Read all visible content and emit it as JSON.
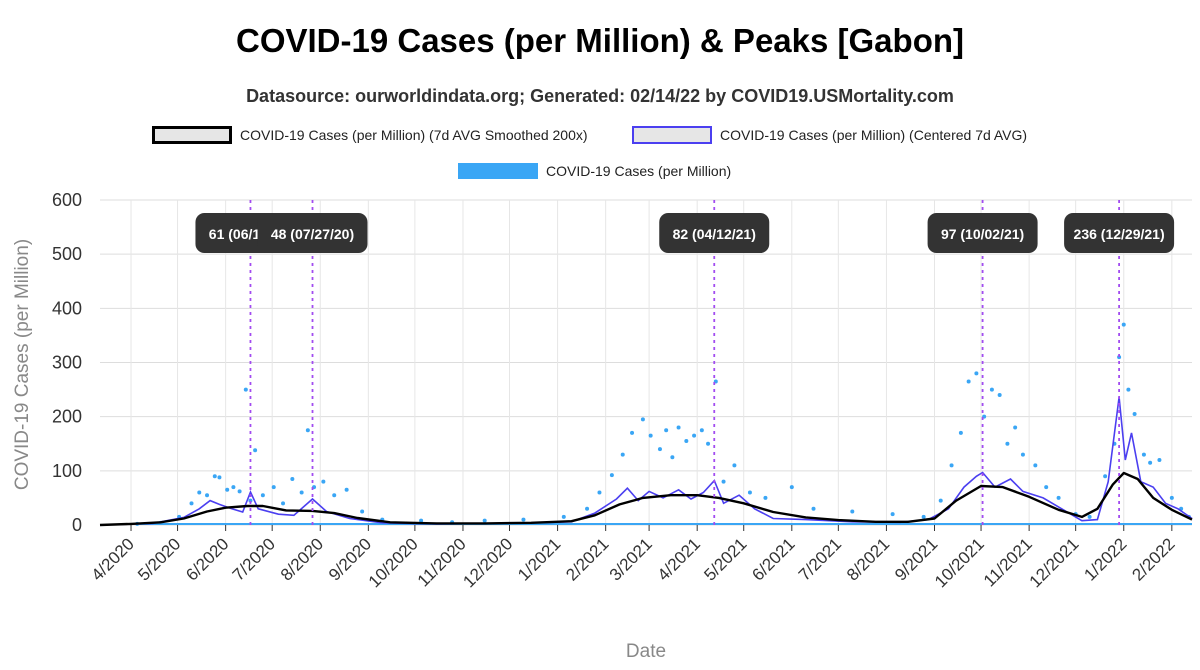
{
  "title": "COVID-19 Cases (per Million) & Peaks [Gabon]",
  "subtitle": "Datasource: ourworldindata.org; Generated: 02/14/22 by COVID19.USMortality.com",
  "legend": {
    "smoothed": "COVID-19 Cases (per Million) (7d AVG Smoothed 200x)",
    "centered": "COVID-19 Cases (per Million) (Centered 7d AVG)",
    "raw": "COVID-19 Cases (per Million)"
  },
  "colors": {
    "smoothed": "#000000",
    "centered": "#4b3ff0",
    "raw": "#3aa6f5",
    "peak_line": "#a24cf0",
    "peak_label_bg": "#333333"
  },
  "chart_data": {
    "type": "line",
    "xlabel": "Date",
    "ylabel": "COVID-19 Cases (per Million)",
    "ylim": [
      0,
      600
    ],
    "xlim": [
      "2020-03-12",
      "2022-02-14"
    ],
    "yticks": [
      "0",
      "100",
      "200",
      "300",
      "400",
      "500",
      "600"
    ],
    "xticks": [
      {
        "date": "2020-04-01",
        "label": "4/2020"
      },
      {
        "date": "2020-05-01",
        "label": "5/2020"
      },
      {
        "date": "2020-06-01",
        "label": "6/2020"
      },
      {
        "date": "2020-07-01",
        "label": "7/2020"
      },
      {
        "date": "2020-08-01",
        "label": "8/2020"
      },
      {
        "date": "2020-09-01",
        "label": "9/2020"
      },
      {
        "date": "2020-10-01",
        "label": "10/2020"
      },
      {
        "date": "2020-11-01",
        "label": "11/2020"
      },
      {
        "date": "2020-12-01",
        "label": "12/2020"
      },
      {
        "date": "2021-01-01",
        "label": "1/2021"
      },
      {
        "date": "2021-02-01",
        "label": "2/2021"
      },
      {
        "date": "2021-03-01",
        "label": "3/2021"
      },
      {
        "date": "2021-04-01",
        "label": "4/2021"
      },
      {
        "date": "2021-05-01",
        "label": "5/2021"
      },
      {
        "date": "2021-06-01",
        "label": "6/2021"
      },
      {
        "date": "2021-07-01",
        "label": "7/2021"
      },
      {
        "date": "2021-08-01",
        "label": "8/2021"
      },
      {
        "date": "2021-09-01",
        "label": "9/2021"
      },
      {
        "date": "2021-10-01",
        "label": "10/2021"
      },
      {
        "date": "2021-11-01",
        "label": "11/2021"
      },
      {
        "date": "2021-12-01",
        "label": "12/2021"
      },
      {
        "date": "2022-01-01",
        "label": "1/2022"
      },
      {
        "date": "2022-02-01",
        "label": "2/2022"
      }
    ],
    "grid": true,
    "legend_position": "top",
    "peaks": [
      {
        "date": "2020-06-17",
        "label": "61 (06/17/20)",
        "value": 61
      },
      {
        "date": "2020-07-27",
        "label": "48 (07/27/20)",
        "value": 48
      },
      {
        "date": "2021-04-12",
        "label": "82 (04/12/21)",
        "value": 82
      },
      {
        "date": "2021-10-02",
        "label": "97 (10/02/21)",
        "value": 97
      },
      {
        "date": "2021-12-29",
        "label": "236 (12/29/21)",
        "value": 236
      }
    ],
    "series": [
      {
        "name": "COVID-19 Cases (per Million) (7d AVG Smoothed 200x)",
        "points": [
          [
            "2020-03-12",
            0
          ],
          [
            "2020-04-01",
            2
          ],
          [
            "2020-04-20",
            5
          ],
          [
            "2020-05-05",
            12
          ],
          [
            "2020-05-20",
            25
          ],
          [
            "2020-06-01",
            32
          ],
          [
            "2020-06-15",
            35
          ],
          [
            "2020-06-25",
            35
          ],
          [
            "2020-07-10",
            27
          ],
          [
            "2020-07-27",
            26
          ],
          [
            "2020-08-10",
            22
          ],
          [
            "2020-08-25",
            13
          ],
          [
            "2020-09-15",
            5
          ],
          [
            "2020-10-15",
            3
          ],
          [
            "2020-11-15",
            3
          ],
          [
            "2020-12-15",
            4
          ],
          [
            "2021-01-10",
            7
          ],
          [
            "2021-01-25",
            18
          ],
          [
            "2021-02-10",
            38
          ],
          [
            "2021-02-25",
            50
          ],
          [
            "2021-03-15",
            55
          ],
          [
            "2021-04-01",
            55
          ],
          [
            "2021-04-15",
            50
          ],
          [
            "2021-05-01",
            40
          ],
          [
            "2021-05-20",
            24
          ],
          [
            "2021-06-10",
            14
          ],
          [
            "2021-07-01",
            9
          ],
          [
            "2021-07-25",
            6
          ],
          [
            "2021-08-15",
            6
          ],
          [
            "2021-09-01",
            12
          ],
          [
            "2021-09-15",
            45
          ],
          [
            "2021-10-01",
            72
          ],
          [
            "2021-10-15",
            70
          ],
          [
            "2021-11-01",
            52
          ],
          [
            "2021-11-20",
            28
          ],
          [
            "2021-12-05",
            15
          ],
          [
            "2021-12-15",
            30
          ],
          [
            "2021-12-25",
            75
          ],
          [
            "2022-01-01",
            96
          ],
          [
            "2022-01-10",
            85
          ],
          [
            "2022-01-20",
            50
          ],
          [
            "2022-02-01",
            28
          ],
          [
            "2022-02-14",
            10
          ]
        ]
      },
      {
        "name": "COVID-19 Cases (per Million) (Centered 7d AVG)",
        "points": [
          [
            "2020-03-12",
            0
          ],
          [
            "2020-04-15",
            3
          ],
          [
            "2020-05-05",
            14
          ],
          [
            "2020-05-15",
            30
          ],
          [
            "2020-05-22",
            45
          ],
          [
            "2020-05-28",
            38
          ],
          [
            "2020-06-05",
            30
          ],
          [
            "2020-06-12",
            24
          ],
          [
            "2020-06-17",
            61
          ],
          [
            "2020-06-22",
            30
          ],
          [
            "2020-07-05",
            20
          ],
          [
            "2020-07-15",
            18
          ],
          [
            "2020-07-27",
            48
          ],
          [
            "2020-08-05",
            25
          ],
          [
            "2020-08-20",
            12
          ],
          [
            "2020-09-10",
            4
          ],
          [
            "2020-10-15",
            2
          ],
          [
            "2020-11-15",
            3
          ],
          [
            "2020-12-15",
            4
          ],
          [
            "2021-01-10",
            6
          ],
          [
            "2021-01-25",
            22
          ],
          [
            "2021-02-08",
            48
          ],
          [
            "2021-02-15",
            68
          ],
          [
            "2021-02-22",
            45
          ],
          [
            "2021-03-01",
            62
          ],
          [
            "2021-03-10",
            50
          ],
          [
            "2021-03-20",
            65
          ],
          [
            "2021-03-28",
            48
          ],
          [
            "2021-04-05",
            60
          ],
          [
            "2021-04-12",
            82
          ],
          [
            "2021-04-18",
            40
          ],
          [
            "2021-04-28",
            55
          ],
          [
            "2021-05-08",
            30
          ],
          [
            "2021-05-20",
            12
          ],
          [
            "2021-06-10",
            10
          ],
          [
            "2021-07-10",
            6
          ],
          [
            "2021-08-10",
            5
          ],
          [
            "2021-08-28",
            10
          ],
          [
            "2021-09-10",
            30
          ],
          [
            "2021-09-20",
            70
          ],
          [
            "2021-09-28",
            90
          ],
          [
            "2021-10-02",
            97
          ],
          [
            "2021-10-10",
            70
          ],
          [
            "2021-10-20",
            85
          ],
          [
            "2021-10-28",
            62
          ],
          [
            "2021-11-10",
            50
          ],
          [
            "2021-11-22",
            30
          ],
          [
            "2021-12-05",
            8
          ],
          [
            "2021-12-15",
            10
          ],
          [
            "2021-12-22",
            80
          ],
          [
            "2021-12-29",
            236
          ],
          [
            "2022-01-02",
            120
          ],
          [
            "2022-01-06",
            170
          ],
          [
            "2022-01-12",
            80
          ],
          [
            "2022-01-20",
            70
          ],
          [
            "2022-01-28",
            40
          ],
          [
            "2022-02-05",
            30
          ],
          [
            "2022-02-14",
            12
          ]
        ]
      },
      {
        "name": "COVID-19 Cases (per Million)",
        "points": [
          [
            "2020-04-05",
            2
          ],
          [
            "2020-04-20",
            4
          ],
          [
            "2020-05-02",
            15
          ],
          [
            "2020-05-10",
            40
          ],
          [
            "2020-05-15",
            60
          ],
          [
            "2020-05-20",
            55
          ],
          [
            "2020-05-25",
            90
          ],
          [
            "2020-05-28",
            88
          ],
          [
            "2020-06-02",
            65
          ],
          [
            "2020-06-06",
            70
          ],
          [
            "2020-06-10",
            62
          ],
          [
            "2020-06-14",
            250
          ],
          [
            "2020-06-17",
            45
          ],
          [
            "2020-06-20",
            138
          ],
          [
            "2020-06-25",
            55
          ],
          [
            "2020-07-02",
            70
          ],
          [
            "2020-07-08",
            40
          ],
          [
            "2020-07-14",
            85
          ],
          [
            "2020-07-20",
            60
          ],
          [
            "2020-07-24",
            175
          ],
          [
            "2020-07-28",
            70
          ],
          [
            "2020-08-03",
            80
          ],
          [
            "2020-08-10",
            55
          ],
          [
            "2020-08-18",
            65
          ],
          [
            "2020-08-28",
            25
          ],
          [
            "2020-09-10",
            10
          ],
          [
            "2020-10-05",
            8
          ],
          [
            "2020-10-25",
            5
          ],
          [
            "2020-11-15",
            8
          ],
          [
            "2020-12-10",
            10
          ],
          [
            "2021-01-05",
            15
          ],
          [
            "2021-01-20",
            30
          ],
          [
            "2021-01-28",
            60
          ],
          [
            "2021-02-05",
            92
          ],
          [
            "2021-02-12",
            130
          ],
          [
            "2021-02-18",
            170
          ],
          [
            "2021-02-25",
            195
          ],
          [
            "2021-03-02",
            165
          ],
          [
            "2021-03-08",
            140
          ],
          [
            "2021-03-12",
            175
          ],
          [
            "2021-03-16",
            125
          ],
          [
            "2021-03-20",
            180
          ],
          [
            "2021-03-25",
            155
          ],
          [
            "2021-03-30",
            165
          ],
          [
            "2021-04-04",
            175
          ],
          [
            "2021-04-08",
            150
          ],
          [
            "2021-04-13",
            265
          ],
          [
            "2021-04-18",
            80
          ],
          [
            "2021-04-25",
            110
          ],
          [
            "2021-05-05",
            60
          ],
          [
            "2021-05-15",
            50
          ],
          [
            "2021-06-01",
            70
          ],
          [
            "2021-06-15",
            30
          ],
          [
            "2021-07-10",
            25
          ],
          [
            "2021-08-05",
            20
          ],
          [
            "2021-08-25",
            15
          ],
          [
            "2021-09-05",
            45
          ],
          [
            "2021-09-12",
            110
          ],
          [
            "2021-09-18",
            170
          ],
          [
            "2021-09-23",
            265
          ],
          [
            "2021-09-28",
            280
          ],
          [
            "2021-10-03",
            200
          ],
          [
            "2021-10-08",
            250
          ],
          [
            "2021-10-13",
            240
          ],
          [
            "2021-10-18",
            150
          ],
          [
            "2021-10-23",
            180
          ],
          [
            "2021-10-28",
            130
          ],
          [
            "2021-11-05",
            110
          ],
          [
            "2021-11-12",
            70
          ],
          [
            "2021-11-20",
            50
          ],
          [
            "2021-12-01",
            20
          ],
          [
            "2021-12-10",
            15
          ],
          [
            "2021-12-20",
            90
          ],
          [
            "2021-12-26",
            150
          ],
          [
            "2021-12-29",
            310
          ],
          [
            "2022-01-01",
            370
          ],
          [
            "2022-01-04",
            250
          ],
          [
            "2022-01-08",
            205
          ],
          [
            "2022-01-14",
            130
          ],
          [
            "2022-01-18",
            115
          ],
          [
            "2022-01-24",
            120
          ],
          [
            "2022-02-01",
            50
          ],
          [
            "2022-02-07",
            30
          ],
          [
            "2022-02-12",
            15
          ]
        ]
      }
    ]
  }
}
